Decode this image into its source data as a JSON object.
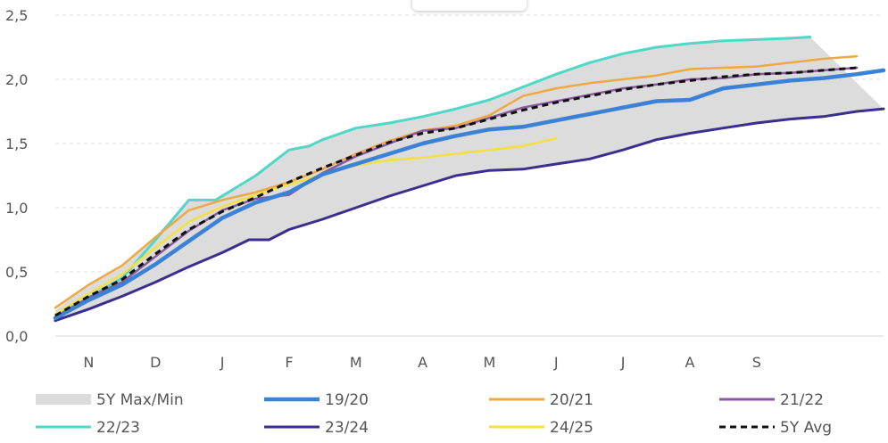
{
  "chart_data": {
    "type": "line",
    "title": "",
    "xlabel": "",
    "ylabel": "",
    "ylim": [
      0,
      2.5
    ],
    "y_ticks": [
      "0,0",
      "0,5",
      "1,0",
      "1,5",
      "2,0",
      "2,5"
    ],
    "x_ticks": [
      "N",
      "D",
      "J",
      "F",
      "M",
      "A",
      "M",
      "J",
      "J",
      "A",
      "S"
    ],
    "grid": "horizontal dashed",
    "legend_position": "bottom",
    "x_units": "months from start of November",
    "band": {
      "name": "5Y Max/Min",
      "color": "#dcdcdc",
      "upper": [
        [
          0,
          0.2
        ],
        [
          0.5,
          0.4
        ],
        [
          1,
          0.55
        ],
        [
          1.5,
          0.78
        ],
        [
          2,
          1.05
        ],
        [
          2.4,
          1.06
        ],
        [
          3,
          1.25
        ],
        [
          3.5,
          1.45
        ],
        [
          3.8,
          1.48
        ],
        [
          4,
          1.53
        ],
        [
          4.5,
          1.62
        ],
        [
          5,
          1.66
        ],
        [
          5.5,
          1.71
        ],
        [
          6,
          1.77
        ],
        [
          6.5,
          1.84
        ],
        [
          7,
          1.94
        ],
        [
          7.5,
          2.04
        ],
        [
          8,
          2.13
        ],
        [
          8.5,
          2.2
        ],
        [
          9,
          2.25
        ],
        [
          9.5,
          2.28
        ],
        [
          10,
          2.3
        ],
        [
          10.5,
          2.31
        ],
        [
          11,
          2.32
        ],
        [
          11.3,
          2.33
        ]
      ],
      "lower": [
        [
          0,
          0.12
        ],
        [
          0.5,
          0.21
        ],
        [
          1,
          0.31
        ],
        [
          1.5,
          0.42
        ],
        [
          2,
          0.54
        ],
        [
          2.5,
          0.65
        ],
        [
          2.9,
          0.75
        ],
        [
          3.2,
          0.75
        ],
        [
          3.5,
          0.83
        ],
        [
          4,
          0.91
        ],
        [
          4.5,
          1.0
        ],
        [
          5,
          1.09
        ],
        [
          5.5,
          1.17
        ],
        [
          6,
          1.25
        ],
        [
          6.5,
          1.29
        ],
        [
          7,
          1.3
        ],
        [
          7.5,
          1.34
        ],
        [
          8,
          1.38
        ],
        [
          8.5,
          1.45
        ],
        [
          9,
          1.53
        ],
        [
          9.5,
          1.58
        ],
        [
          10,
          1.62
        ],
        [
          10.5,
          1.66
        ],
        [
          11,
          1.69
        ],
        [
          11.5,
          1.71
        ],
        [
          12,
          1.75
        ],
        [
          12.4,
          1.77
        ]
      ]
    },
    "series": [
      {
        "name": "19/20",
        "color": "#3b82d6",
        "width": 4.5,
        "dash": "",
        "points": [
          [
            0,
            0.14
          ],
          [
            0.5,
            0.28
          ],
          [
            1,
            0.4
          ],
          [
            1.5,
            0.56
          ],
          [
            2,
            0.74
          ],
          [
            2.5,
            0.92
          ],
          [
            3,
            1.04
          ],
          [
            3.5,
            1.12
          ],
          [
            4,
            1.26
          ],
          [
            4.5,
            1.34
          ],
          [
            5,
            1.42
          ],
          [
            5.5,
            1.5
          ],
          [
            6,
            1.56
          ],
          [
            6.5,
            1.61
          ],
          [
            7,
            1.63
          ],
          [
            7.5,
            1.68
          ],
          [
            8,
            1.73
          ],
          [
            8.5,
            1.78
          ],
          [
            9,
            1.83
          ],
          [
            9.5,
            1.84
          ],
          [
            10,
            1.93
          ],
          [
            10.5,
            1.96
          ],
          [
            11,
            1.99
          ],
          [
            11.5,
            2.01
          ],
          [
            12,
            2.04
          ],
          [
            12.4,
            2.07
          ]
        ]
      },
      {
        "name": "20/21",
        "color": "#f0a843",
        "width": 2.5,
        "dash": "",
        "points": [
          [
            0,
            0.22
          ],
          [
            0.5,
            0.4
          ],
          [
            1,
            0.55
          ],
          [
            1.5,
            0.77
          ],
          [
            2,
            0.98
          ],
          [
            2.5,
            1.06
          ],
          [
            3,
            1.12
          ],
          [
            3.5,
            1.2
          ],
          [
            4,
            1.3
          ],
          [
            4.5,
            1.42
          ],
          [
            5,
            1.52
          ],
          [
            5.5,
            1.6
          ],
          [
            6,
            1.64
          ],
          [
            6.5,
            1.72
          ],
          [
            7,
            1.87
          ],
          [
            7.5,
            1.93
          ],
          [
            8,
            1.97
          ],
          [
            8.5,
            2.0
          ],
          [
            9,
            2.03
          ],
          [
            9.5,
            2.08
          ],
          [
            10,
            2.09
          ],
          [
            10.5,
            2.1
          ],
          [
            11,
            2.13
          ],
          [
            11.5,
            2.16
          ],
          [
            12,
            2.18
          ]
        ]
      },
      {
        "name": "21/22",
        "color": "#8a5a9e",
        "width": 2.5,
        "dash": "",
        "points": [
          [
            0,
            0.15
          ],
          [
            0.5,
            0.3
          ],
          [
            1,
            0.42
          ],
          [
            1.5,
            0.62
          ],
          [
            2,
            0.82
          ],
          [
            2.5,
            0.98
          ],
          [
            3,
            1.07
          ],
          [
            3.5,
            1.1
          ],
          [
            4,
            1.27
          ],
          [
            4.5,
            1.4
          ],
          [
            5,
            1.5
          ],
          [
            5.5,
            1.6
          ],
          [
            6,
            1.62
          ],
          [
            6.5,
            1.7
          ],
          [
            7,
            1.78
          ],
          [
            7.5,
            1.83
          ],
          [
            8,
            1.88
          ],
          [
            8.5,
            1.93
          ],
          [
            9,
            1.96
          ],
          [
            9.5,
            2.0
          ],
          [
            10,
            2.01
          ],
          [
            10.5,
            2.04
          ],
          [
            11,
            2.05
          ],
          [
            11.5,
            2.07
          ],
          [
            12,
            2.09
          ]
        ]
      },
      {
        "name": "22/23",
        "color": "#4fd8c7",
        "width": 3,
        "dash": "",
        "points": [
          [
            0,
            0.15
          ],
          [
            0.5,
            0.3
          ],
          [
            1,
            0.45
          ],
          [
            1.5,
            0.75
          ],
          [
            2,
            1.06
          ],
          [
            2.4,
            1.06
          ],
          [
            3,
            1.25
          ],
          [
            3.5,
            1.45
          ],
          [
            3.8,
            1.48
          ],
          [
            4,
            1.53
          ],
          [
            4.5,
            1.62
          ],
          [
            5,
            1.66
          ],
          [
            5.5,
            1.71
          ],
          [
            6,
            1.77
          ],
          [
            6.5,
            1.84
          ],
          [
            7,
            1.94
          ],
          [
            7.5,
            2.04
          ],
          [
            8,
            2.13
          ],
          [
            8.5,
            2.2
          ],
          [
            9,
            2.25
          ],
          [
            9.5,
            2.28
          ],
          [
            10,
            2.3
          ],
          [
            10.5,
            2.31
          ],
          [
            11,
            2.32
          ],
          [
            11.3,
            2.33
          ]
        ]
      },
      {
        "name": "23/24",
        "color": "#3a2f8f",
        "width": 3,
        "dash": "",
        "points": [
          [
            0,
            0.12
          ],
          [
            0.5,
            0.21
          ],
          [
            1,
            0.31
          ],
          [
            1.5,
            0.42
          ],
          [
            2,
            0.54
          ],
          [
            2.5,
            0.65
          ],
          [
            2.9,
            0.75
          ],
          [
            3.2,
            0.75
          ],
          [
            3.5,
            0.83
          ],
          [
            4,
            0.91
          ],
          [
            4.5,
            1.0
          ],
          [
            5,
            1.09
          ],
          [
            5.5,
            1.17
          ],
          [
            6,
            1.25
          ],
          [
            6.5,
            1.29
          ],
          [
            7,
            1.3
          ],
          [
            7.5,
            1.34
          ],
          [
            8,
            1.38
          ],
          [
            8.5,
            1.45
          ],
          [
            9,
            1.53
          ],
          [
            9.5,
            1.58
          ],
          [
            10,
            1.62
          ],
          [
            10.5,
            1.66
          ],
          [
            11,
            1.69
          ],
          [
            11.5,
            1.71
          ],
          [
            12,
            1.75
          ],
          [
            12.4,
            1.77
          ]
        ]
      },
      {
        "name": "24/25",
        "color": "#f5e13d",
        "width": 2.5,
        "dash": "",
        "points": [
          [
            0,
            0.17
          ],
          [
            0.5,
            0.33
          ],
          [
            1,
            0.48
          ],
          [
            1.5,
            0.69
          ],
          [
            2,
            0.89
          ],
          [
            2.5,
            1.01
          ],
          [
            3,
            1.1
          ],
          [
            3.5,
            1.18
          ],
          [
            4,
            1.26
          ],
          [
            4.5,
            1.33
          ],
          [
            5,
            1.37
          ],
          [
            5.5,
            1.39
          ],
          [
            6,
            1.42
          ],
          [
            6.5,
            1.45
          ],
          [
            7,
            1.48
          ],
          [
            7.5,
            1.54
          ]
        ]
      },
      {
        "name": "5Y Avg",
        "color": "#111111",
        "width": 3,
        "dash": "7,5",
        "points": [
          [
            0,
            0.16
          ],
          [
            0.5,
            0.31
          ],
          [
            1,
            0.44
          ],
          [
            1.5,
            0.64
          ],
          [
            2,
            0.83
          ],
          [
            2.5,
            0.97
          ],
          [
            3,
            1.08
          ],
          [
            3.5,
            1.2
          ],
          [
            4,
            1.31
          ],
          [
            4.5,
            1.41
          ],
          [
            5,
            1.51
          ],
          [
            5.5,
            1.58
          ],
          [
            6,
            1.62
          ],
          [
            6.5,
            1.69
          ],
          [
            7,
            1.76
          ],
          [
            7.5,
            1.82
          ],
          [
            8,
            1.87
          ],
          [
            8.5,
            1.92
          ],
          [
            9,
            1.96
          ],
          [
            9.5,
            1.99
          ],
          [
            10,
            2.02
          ],
          [
            10.5,
            2.04
          ],
          [
            11,
            2.05
          ],
          [
            11.5,
            2.07
          ],
          [
            12,
            2.09
          ]
        ]
      }
    ],
    "legend": [
      {
        "label": "5Y Max/Min",
        "kind": "band",
        "color": "#dcdcdc"
      },
      {
        "label": "19/20",
        "kind": "line",
        "color": "#3b82d6",
        "dash": ""
      },
      {
        "label": "20/21",
        "kind": "line",
        "color": "#f0a843",
        "dash": ""
      },
      {
        "label": "21/22",
        "kind": "line",
        "color": "#8a5a9e",
        "dash": ""
      },
      {
        "label": "22/23",
        "kind": "line",
        "color": "#4fd8c7",
        "dash": ""
      },
      {
        "label": "23/24",
        "kind": "line",
        "color": "#3a2f8f",
        "dash": ""
      },
      {
        "label": "24/25",
        "kind": "line",
        "color": "#f5e13d",
        "dash": ""
      },
      {
        "label": "5Y Avg",
        "kind": "line",
        "color": "#111111",
        "dash": "7,5"
      }
    ]
  }
}
